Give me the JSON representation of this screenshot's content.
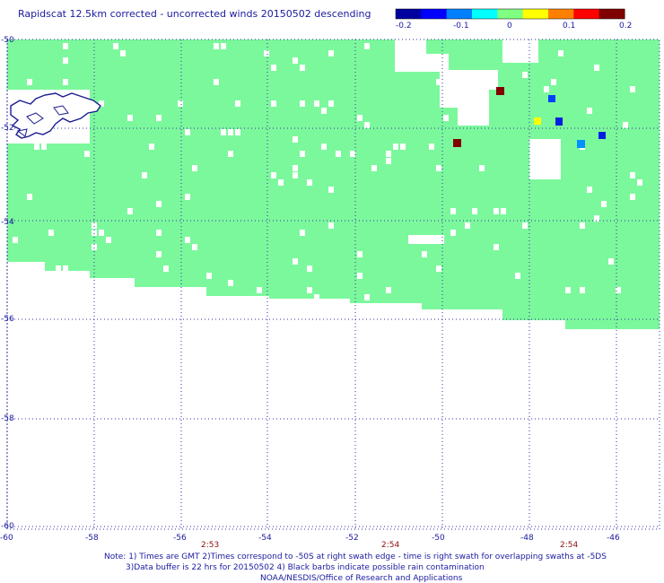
{
  "title": "Rapidscat 12.5km corrected - uncorrected winds 20150502 descending",
  "colorbar": {
    "labels": [
      "-0.2",
      "-0.1",
      "0",
      "0.1",
      "0.2"
    ],
    "colors": [
      "#0000a0",
      "#0000ff",
      "#0080ff",
      "#00ffff",
      "#80ff80",
      "#ffff00",
      "#ff8000",
      "#ff0000",
      "#800000"
    ]
  },
  "axes": {
    "lat_labels": [
      "-50",
      "-52",
      "-54",
      "-56",
      "-58",
      "-60"
    ],
    "lon_labels": [
      "-60",
      "-58",
      "-56",
      "-54",
      "-52",
      "-50",
      "-48",
      "-46"
    ]
  },
  "times": [
    "2:53",
    "2:54",
    "2:54"
  ],
  "notes": [
    "Note: 1) Times are GMT 2)Times correspond to -50S at right swath edge - time is right swath for overlapping swaths at -5DS",
    "3)Data buffer is 22 hrs for 20150502 4) Black barbs indicate possible rain contamination",
    "NOAA/NESDIS/Office of Research and Applications"
  ],
  "colors": {
    "swath": "#7cf89c",
    "grid": "#3030a0",
    "coast": "#1a1a90",
    "time": "#8b1010"
  }
}
